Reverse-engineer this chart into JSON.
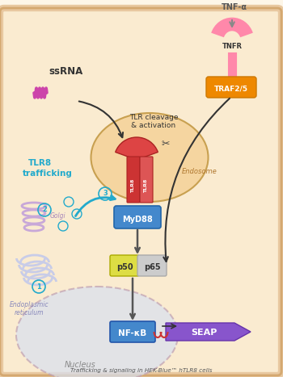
{
  "title": "Trafficking & signaling in HEK-Blue™ hTLR8 cells",
  "bg_color": "#fdf6e8",
  "cell_membrane_color": "#e8c8a0",
  "cell_interior_color": "#faebd0",
  "endosome_color": "#f5d5a0",
  "endosome_border": "#c8a050",
  "nucleus_color": "#d8e0f0",
  "nucleus_border": "#c0a0b0",
  "er_color": "#c8cce8",
  "golgi_color": "#c8a8d8",
  "tlr8_color": "#cc3333",
  "myd88_color": "#4488cc",
  "p50_color": "#dddd44",
  "p65_color": "#cccccc",
  "nfkb_color": "#4488cc",
  "seap_color": "#8855cc",
  "traf_color": "#ee8800",
  "tnfr_color": "#ff88aa",
  "ssrna_color": "#cc44aa",
  "trafficking_color": "#22aacc",
  "arrow_color": "#333333",
  "circled_numbers": [
    [
      1,
      48,
      355
    ],
    [
      2,
      55,
      260
    ],
    [
      3,
      130,
      240
    ]
  ]
}
